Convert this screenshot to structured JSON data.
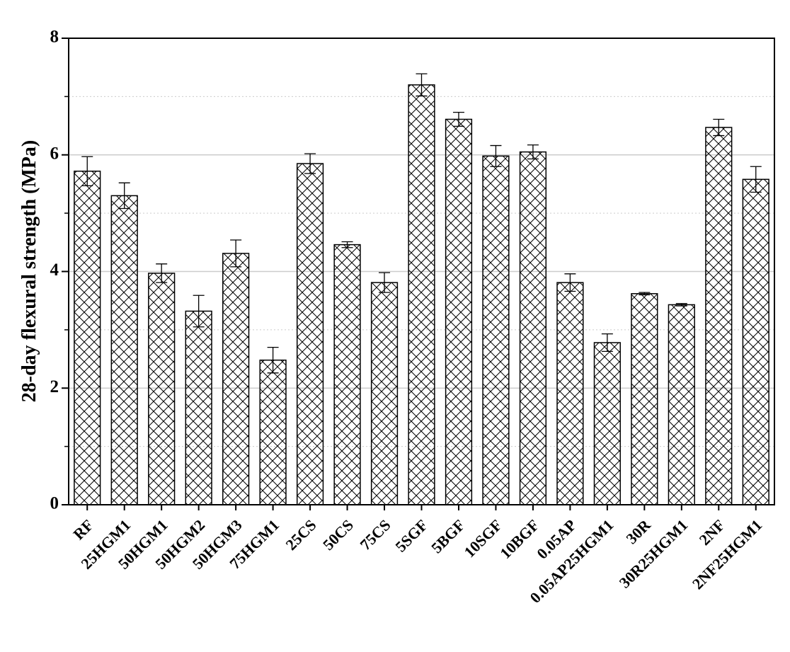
{
  "chart_data": {
    "type": "bar",
    "y_label": "28-day flexural strength (MPa)",
    "categories": [
      "RF",
      "25HGM1",
      "50HGM1",
      "50HGM2",
      "50HGM3",
      "75HGM1",
      "25CS",
      "50CS",
      "75CS",
      "5SGF",
      "5BGF",
      "10SGF",
      "10BGF",
      "0.05AP",
      "0.05AP25HGM1",
      "30R",
      "30R25HGM1",
      "2NF",
      "2NF25HGM1"
    ],
    "values": [
      5.72,
      5.3,
      3.97,
      3.32,
      4.31,
      2.48,
      5.85,
      4.46,
      3.81,
      7.2,
      6.61,
      5.98,
      6.05,
      3.81,
      2.78,
      3.62,
      3.43,
      6.47,
      5.58
    ],
    "errors": [
      0.25,
      0.22,
      0.16,
      0.27,
      0.23,
      0.22,
      0.17,
      0.05,
      0.17,
      0.19,
      0.12,
      0.18,
      0.12,
      0.15,
      0.15,
      0.02,
      0.02,
      0.14,
      0.22
    ],
    "color": "#000000",
    "ylim": [
      0,
      8
    ],
    "yticks": [
      0,
      2,
      4,
      6,
      8
    ],
    "minor_yticks": [
      1,
      3,
      5,
      7
    ],
    "grid": true
  }
}
